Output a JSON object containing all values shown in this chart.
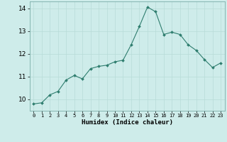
{
  "x": [
    0,
    1,
    2,
    3,
    4,
    5,
    6,
    7,
    8,
    9,
    10,
    11,
    12,
    13,
    14,
    15,
    16,
    17,
    18,
    19,
    20,
    21,
    22,
    23
  ],
  "y": [
    9.8,
    9.85,
    10.2,
    10.35,
    10.85,
    11.05,
    10.9,
    11.35,
    11.45,
    11.5,
    11.65,
    11.72,
    12.4,
    13.2,
    14.05,
    13.85,
    12.85,
    12.95,
    12.85,
    12.4,
    12.15,
    11.75,
    11.4,
    11.6
  ],
  "xlabel": "Humidex (Indice chaleur)",
  "ylim": [
    9.5,
    14.3
  ],
  "xlim": [
    -0.5,
    23.5
  ],
  "yticks": [
    10,
    11,
    12,
    13,
    14
  ],
  "xticks": [
    0,
    1,
    2,
    3,
    4,
    5,
    6,
    7,
    8,
    9,
    10,
    11,
    12,
    13,
    14,
    15,
    16,
    17,
    18,
    19,
    20,
    21,
    22,
    23
  ],
  "line_color": "#2e7d6e",
  "marker_color": "#2e7d6e",
  "bg_color": "#ceecea",
  "grid_color": "#b8dbd8",
  "xlabel_fontsize": 6.5,
  "ytick_fontsize": 6.5,
  "xtick_fontsize": 5.0
}
